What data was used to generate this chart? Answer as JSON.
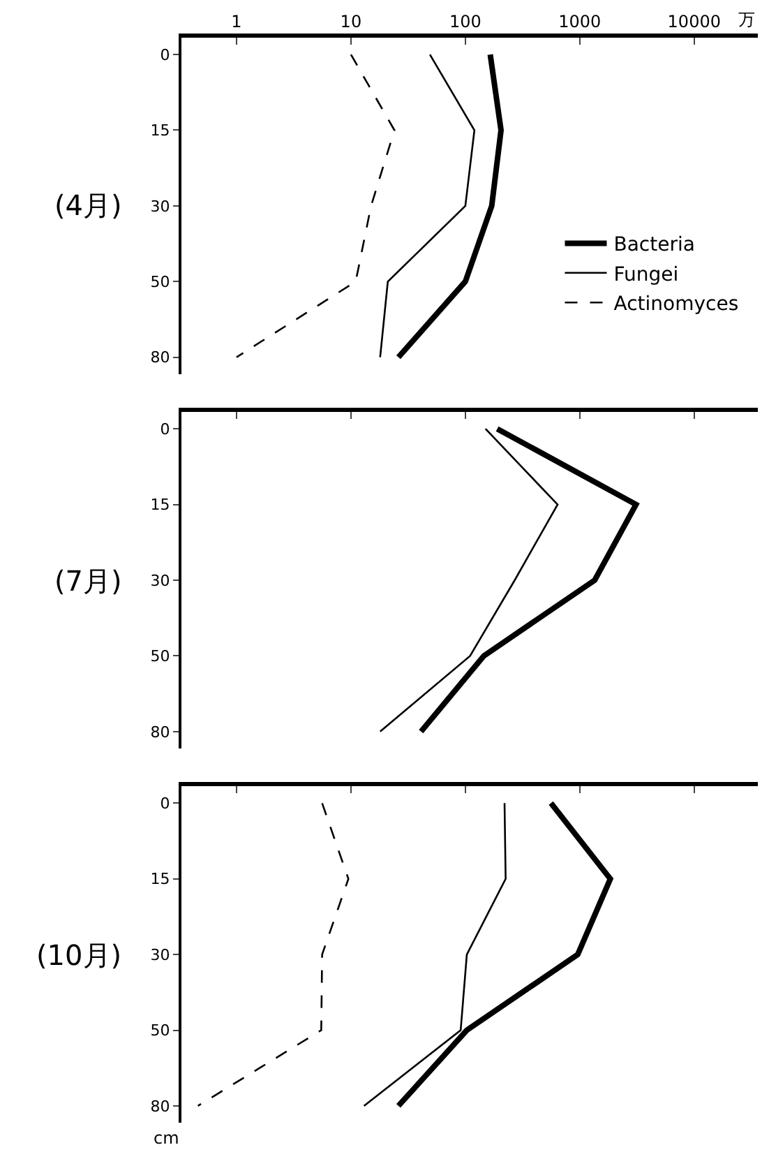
{
  "chart_data": [
    {
      "type": "line",
      "orientation": "horizontal",
      "log": "x",
      "ylabel": "(4月)",
      "xlabel": "万",
      "categories": [
        "0",
        "15",
        "30",
        "50",
        "80"
      ],
      "xlim": [
        0.33,
        36000
      ],
      "xticks": [
        1,
        10,
        100,
        1000,
        10000
      ],
      "legend": "right",
      "series": [
        {
          "name": "Bacteria",
          "color": "#000000",
          "line_style": "solid",
          "values": [
            165,
            205,
            170,
            100,
            26
          ]
        },
        {
          "name": "Fungei",
          "color": "#000000",
          "line_style": "solid",
          "values": [
            49,
            120,
            100,
            21,
            18
          ]
        },
        {
          "name": "Actinomyces",
          "color": "#000000",
          "line_style": "dashed",
          "values": [
            10,
            24,
            15,
            11,
            1
          ]
        }
      ]
    },
    {
      "type": "line",
      "orientation": "horizontal",
      "log": "x",
      "ylabel": "(7月)",
      "categories": [
        "0",
        "15",
        "30",
        "50",
        "80"
      ],
      "xlim": [
        0.33,
        36000
      ],
      "xticks": [
        1,
        10,
        100,
        1000,
        10000
      ],
      "tick_labels": "y",
      "series": [
        {
          "color": "#000000",
          "line_style": "solid",
          "values": [
            190,
            3100,
            1350,
            145,
            41
          ]
        },
        {
          "color": "#000000",
          "line_style": "solid",
          "values": [
            150,
            640,
            270,
            110,
            18
          ]
        }
      ]
    },
    {
      "type": "line",
      "orientation": "horizontal",
      "log": "x",
      "ylabel": "(10月)",
      "categories": [
        "0",
        "15",
        "30",
        "50",
        "80"
      ],
      "xlim": [
        0.33,
        36000
      ],
      "xticks": [
        1,
        10,
        100,
        1000,
        10000
      ],
      "tick_labels": "y",
      "annotations": [
        "cm"
      ],
      "series": [
        {
          "color": "#000000",
          "line_style": "solid",
          "values": [
            560,
            1850,
            960,
            103,
            26
          ]
        },
        {
          "color": "#000000",
          "line_style": "solid",
          "values": [
            220,
            225,
            103,
            91,
            13
          ]
        },
        {
          "color": "#000000",
          "line_style": "dashed",
          "values": [
            5.6,
            9.5,
            5.6,
            5.5,
            0.46
          ]
        }
      ]
    }
  ]
}
